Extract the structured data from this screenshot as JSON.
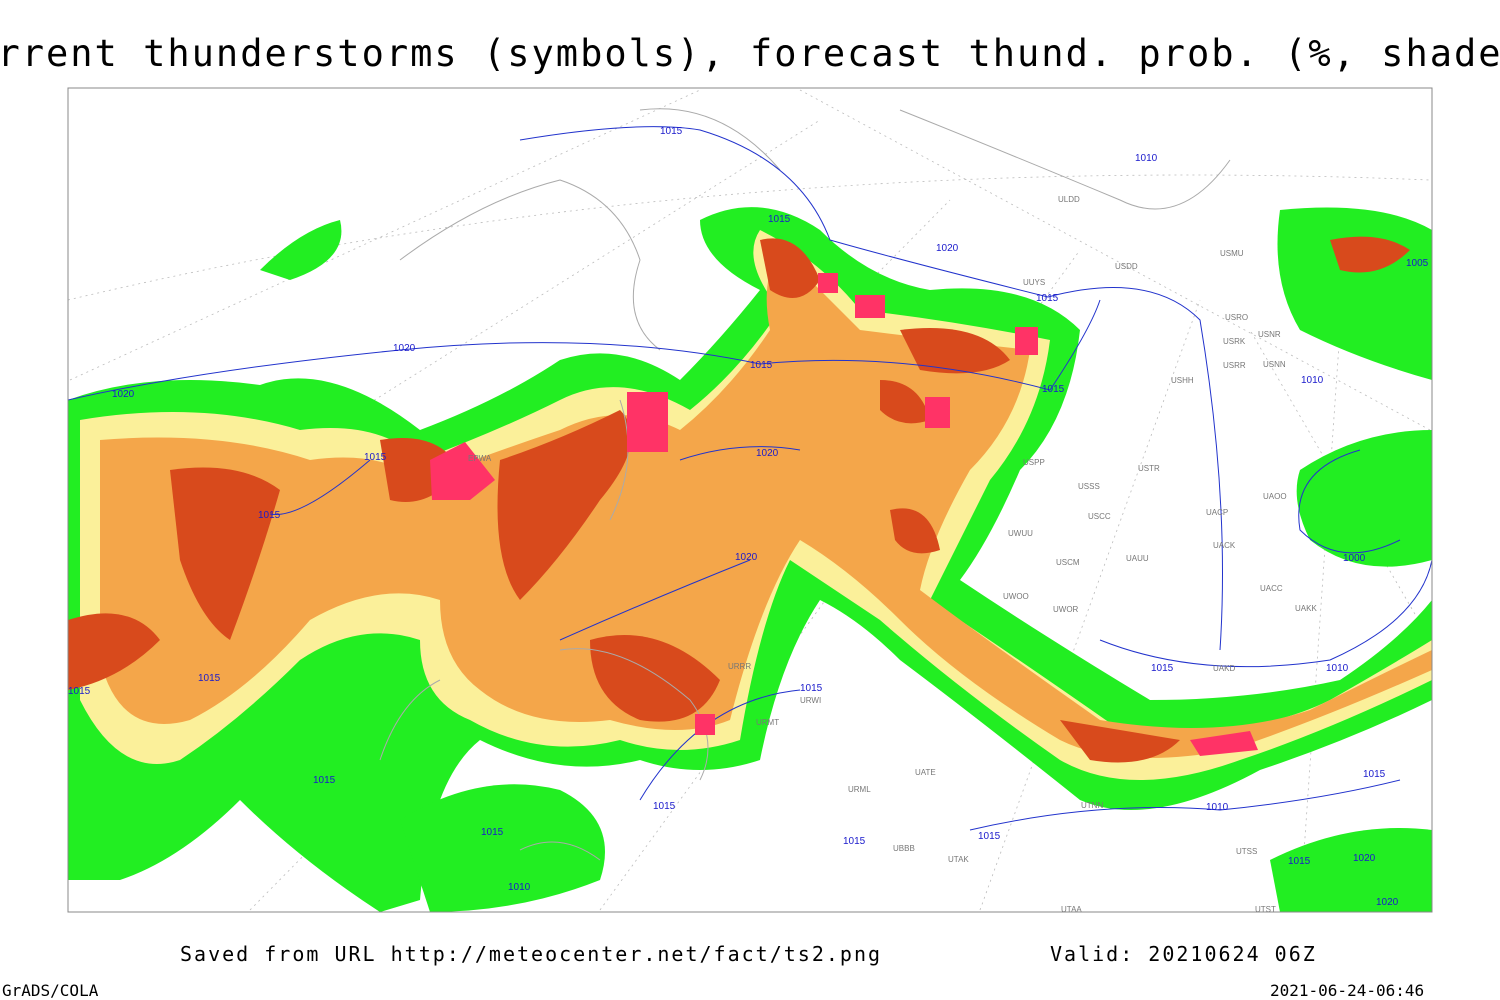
{
  "header": {
    "title": "Current thunderstorms (symbols), forecast thund. prob. (%, shaded)"
  },
  "map": {
    "isobar_labels": [
      "1015",
      "1010",
      "1015",
      "1020",
      "1015",
      "1020",
      "1015",
      "1020",
      "1015",
      "1010",
      "1015",
      "1020",
      "1015",
      "1020",
      "1000",
      "1015",
      "1010",
      "1015",
      "1015",
      "1015",
      "1015",
      "1015",
      "1015",
      "1010",
      "1010",
      "1015",
      "1015",
      "1020",
      "1020",
      "1005",
      "1015",
      "1015"
    ],
    "station_labels": [
      "EPWA",
      "ULDD",
      "USDD",
      "USMU",
      "UUYS",
      "USRO",
      "USRK",
      "USNR",
      "USRR",
      "USNN",
      "USHH",
      "USPP",
      "USTR",
      "USSS",
      "USCC",
      "UWUU",
      "USCM",
      "UAUU",
      "UACP",
      "UACK",
      "UAOO",
      "UACC",
      "UAKK",
      "UWOO",
      "UWOR",
      "UAKD",
      "URRR",
      "URWI",
      "URMT",
      "URML",
      "UATE",
      "UTAK",
      "UBBB",
      "UTNN",
      "UTSS",
      "UTAA",
      "UTST"
    ]
  },
  "footer": {
    "source": "Saved from URL http://meteocenter.net/fact/ts2.png",
    "valid": "Valid: 20210624 06Z",
    "software": "GrADS/COLA",
    "timestamp": "2021-06-24-06:46"
  }
}
